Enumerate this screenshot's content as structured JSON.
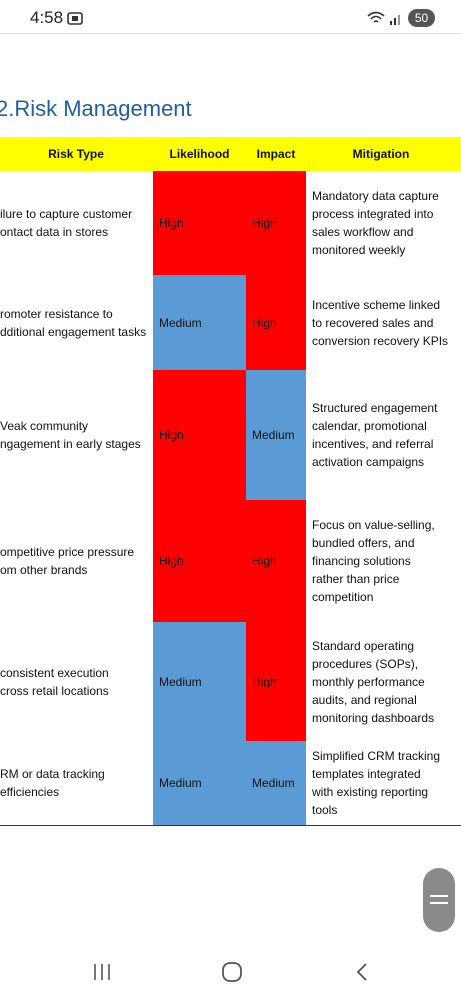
{
  "status_bar": {
    "time": "4:58",
    "battery": "50"
  },
  "document": {
    "heading": "2.Risk Management",
    "table": {
      "header": [
        "Risk Type",
        "Likelihood",
        "Impact",
        "Mitigation"
      ],
      "colors": {
        "header": "#ffff00",
        "High": "#ff0000",
        "Medium": "#5b9bd5"
      },
      "rows": [
        {
          "risk": [
            "ilure to capture customer",
            "ontact data in stores"
          ],
          "likelihood": "High",
          "impact": "High",
          "mitigation": [
            "Mandatory data capture",
            "process integrated into",
            "sales workflow and",
            "monitored weekly"
          ]
        },
        {
          "risk": [
            "romoter resistance to",
            "dditional engagement tasks"
          ],
          "likelihood": "Medium",
          "impact": "High",
          "mitigation": [
            "Incentive scheme linked",
            "to recovered sales and",
            "conversion recovery KPIs"
          ]
        },
        {
          "risk": [
            "Veak community",
            "ngagement in early stages"
          ],
          "likelihood": "High",
          "impact": "Medium",
          "mitigation": [
            "Structured engagement",
            "calendar, promotional",
            "incentives, and referral",
            "activation campaigns"
          ]
        },
        {
          "risk": [
            "ompetitive price pressure",
            "om other brands"
          ],
          "likelihood": "High",
          "impact": "High",
          "mitigation": [
            "Focus on value-selling,",
            "bundled offers, and",
            "financing solutions",
            "rather than price",
            "competition"
          ]
        },
        {
          "risk": [
            "consistent execution",
            "cross retail locations"
          ],
          "likelihood": "Medium",
          "impact": "High",
          "mitigation": [
            "Standard operating",
            "procedures (SOPs),",
            "monthly performance",
            "audits, and regional",
            "monitoring dashboards"
          ]
        },
        {
          "risk": [
            "RM or data tracking",
            "efficiencies"
          ],
          "likelihood": "Medium",
          "impact": "Medium",
          "mitigation": [
            "Simplified CRM tracking",
            "templates integrated",
            "with existing reporting",
            "tools"
          ]
        }
      ]
    }
  }
}
